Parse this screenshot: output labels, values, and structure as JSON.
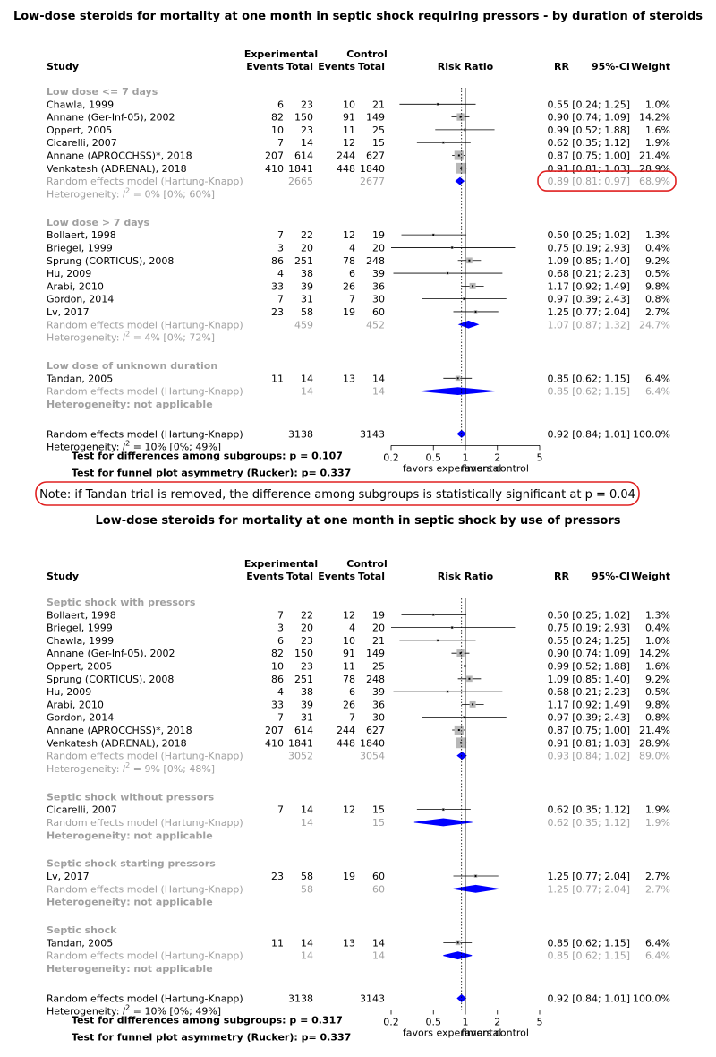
{
  "colors": {
    "diamond": "#0000ff",
    "box": "#b8b8b8",
    "grey_text": "#a0a0a0",
    "callout": "#e02020"
  },
  "headers": {
    "experimental": "Experimental",
    "control": "Control",
    "study": "Study",
    "events": "Events",
    "total": "Total",
    "risk_ratio": "Risk Ratio",
    "rr": "RR",
    "ci": "95%-CI",
    "weight": "Weight"
  },
  "chart_data": [
    {
      "type": "forest",
      "title": "Low-dose steroids for mortality at one month in septic shock requiring pressors - by duration of steroids",
      "xscale": "log",
      "xlim": [
        0.2,
        5
      ],
      "xticks": [
        "0.2",
        "0.5",
        "1",
        "2",
        "5"
      ],
      "xlabel_left": "favors experimental",
      "xlabel_right": "favors control",
      "reference_line": 1,
      "pooled_line": 0.92,
      "subgroups": [
        {
          "label": "Low dose <= 7 days",
          "studies": [
            {
              "name": "Chawla, 1999",
              "e_ev": "6",
              "e_tot": "23",
              "c_ev": "10",
              "c_tot": "21",
              "rr": 0.55,
              "lo": 0.24,
              "hi": 1.25,
              "rr_txt": "0.55",
              "ci_txt": "[0.24; 1.25]",
              "w": 1.0,
              "w_txt": "1.0%"
            },
            {
              "name": "Annane (Ger-Inf-05), 2002",
              "e_ev": "82",
              "e_tot": "150",
              "c_ev": "91",
              "c_tot": "149",
              "rr": 0.9,
              "lo": 0.74,
              "hi": 1.09,
              "rr_txt": "0.90",
              "ci_txt": "[0.74; 1.09]",
              "w": 14.2,
              "w_txt": "14.2%"
            },
            {
              "name": "Oppert, 2005",
              "e_ev": "10",
              "e_tot": "23",
              "c_ev": "11",
              "c_tot": "25",
              "rr": 0.99,
              "lo": 0.52,
              "hi": 1.88,
              "rr_txt": "0.99",
              "ci_txt": "[0.52; 1.88]",
              "w": 1.6,
              "w_txt": "1.6%"
            },
            {
              "name": "Cicarelli, 2007",
              "e_ev": "7",
              "e_tot": "14",
              "c_ev": "12",
              "c_tot": "15",
              "rr": 0.62,
              "lo": 0.35,
              "hi": 1.12,
              "rr_txt": "0.62",
              "ci_txt": "[0.35; 1.12]",
              "w": 1.9,
              "w_txt": "1.9%"
            },
            {
              "name": "Annane (APROCCHSS)*, 2018",
              "e_ev": "207",
              "e_tot": "614",
              "c_ev": "244",
              "c_tot": "627",
              "rr": 0.87,
              "lo": 0.75,
              "hi": 1.0,
              "rr_txt": "0.87",
              "ci_txt": "[0.75; 1.00]",
              "w": 21.4,
              "w_txt": "21.4%"
            },
            {
              "name": "Venkatesh  (ADRENAL), 2018",
              "e_ev": "410",
              "e_tot": "1841",
              "c_ev": "448",
              "c_tot": "1840",
              "rr": 0.91,
              "lo": 0.81,
              "hi": 1.03,
              "rr_txt": "0.91",
              "ci_txt": "[0.81; 1.03]",
              "w": 28.9,
              "w_txt": "28.9%"
            }
          ],
          "pooled": {
            "label": "Random effects model  (Hartung-Knapp)",
            "e_tot": "2665",
            "c_tot": "2677",
            "rr": 0.89,
            "lo": 0.81,
            "hi": 0.97,
            "rr_txt": "0.89",
            "ci_txt": "[0.81; 0.97]",
            "w_txt": "68.9%",
            "highlight": true
          },
          "het_prefix": "Heterogeneity: ",
          "het_sym": "I",
          "het_exp": "2",
          "het_rest": " = 0% [0%; 60%]"
        },
        {
          "label": "Low dose > 7 days",
          "studies": [
            {
              "name": "Bollaert, 1998",
              "e_ev": "7",
              "e_tot": "22",
              "c_ev": "12",
              "c_tot": "19",
              "rr": 0.5,
              "lo": 0.25,
              "hi": 1.02,
              "rr_txt": "0.50",
              "ci_txt": "[0.25; 1.02]",
              "w": 1.3,
              "w_txt": "1.3%"
            },
            {
              "name": "Briegel, 1999",
              "e_ev": "3",
              "e_tot": "20",
              "c_ev": "4",
              "c_tot": "20",
              "rr": 0.75,
              "lo": 0.19,
              "hi": 2.93,
              "rr_txt": "0.75",
              "ci_txt": "[0.19; 2.93]",
              "w": 0.4,
              "w_txt": "0.4%"
            },
            {
              "name": "Sprung (CORTICUS), 2008",
              "e_ev": "86",
              "e_tot": "251",
              "c_ev": "78",
              "c_tot": "248",
              "rr": 1.09,
              "lo": 0.85,
              "hi": 1.4,
              "rr_txt": "1.09",
              "ci_txt": "[0.85; 1.40]",
              "w": 9.2,
              "w_txt": "9.2%"
            },
            {
              "name": "Hu, 2009",
              "e_ev": "4",
              "e_tot": "38",
              "c_ev": "6",
              "c_tot": "39",
              "rr": 0.68,
              "lo": 0.21,
              "hi": 2.23,
              "rr_txt": "0.68",
              "ci_txt": "[0.21; 2.23]",
              "w": 0.5,
              "w_txt": "0.5%"
            },
            {
              "name": "Arabi, 2010",
              "e_ev": "33",
              "e_tot": "39",
              "c_ev": "26",
              "c_tot": "36",
              "rr": 1.17,
              "lo": 0.92,
              "hi": 1.49,
              "rr_txt": "1.17",
              "ci_txt": "[0.92; 1.49]",
              "w": 9.8,
              "w_txt": "9.8%"
            },
            {
              "name": "Gordon, 2014",
              "e_ev": "7",
              "e_tot": "31",
              "c_ev": "7",
              "c_tot": "30",
              "rr": 0.97,
              "lo": 0.39,
              "hi": 2.43,
              "rr_txt": "0.97",
              "ci_txt": "[0.39; 2.43]",
              "w": 0.8,
              "w_txt": "0.8%"
            },
            {
              "name": "Lv, 2017",
              "e_ev": "23",
              "e_tot": "58",
              "c_ev": "19",
              "c_tot": "60",
              "rr": 1.25,
              "lo": 0.77,
              "hi": 2.04,
              "rr_txt": "1.25",
              "ci_txt": "[0.77; 2.04]",
              "w": 2.7,
              "w_txt": "2.7%"
            }
          ],
          "pooled": {
            "label": "Random effects model  (Hartung-Knapp)",
            "e_tot": "459",
            "c_tot": "452",
            "rr": 1.07,
            "lo": 0.87,
            "hi": 1.32,
            "rr_txt": "1.07",
            "ci_txt": "[0.87; 1.32]",
            "w_txt": "24.7%"
          },
          "het_prefix": "Heterogeneity: ",
          "het_sym": "I",
          "het_exp": "2",
          "het_rest": " = 4% [0%; 72%]"
        },
        {
          "label": "Low dose of unknown duration",
          "studies": [
            {
              "name": "Tandan, 2005",
              "e_ev": "11",
              "e_tot": "14",
              "c_ev": "13",
              "c_tot": "14",
              "rr": 0.85,
              "lo": 0.62,
              "hi": 1.15,
              "rr_txt": "0.85",
              "ci_txt": "[0.62; 1.15]",
              "w": 6.4,
              "w_txt": "6.4%"
            }
          ],
          "pooled": {
            "label": "Random effects model  (Hartung-Knapp)",
            "e_tot": "14",
            "c_tot": "14",
            "rr": 0.85,
            "lo": 0.62,
            "hi": 1.15,
            "rr_txt": "0.85",
            "ci_txt": "[0.62; 1.15]",
            "w_txt": "6.4%",
            "wide_lo": 0.38,
            "wide_hi": 1.9
          },
          "het_na": "Heterogeneity: not applicable"
        }
      ],
      "overall": {
        "label": "Random effects model  (Hartung-Knapp)",
        "e_tot": "3138",
        "c_tot": "3143",
        "rr": 0.92,
        "lo": 0.84,
        "hi": 1.01,
        "rr_txt": "0.92",
        "ci_txt": "[0.84; 1.01]",
        "w_txt": "100.0%",
        "het_prefix": "Heterogeneity: ",
        "het_sym": "I",
        "het_exp": "2",
        "het_rest": " = 10% [0%; 49%]"
      },
      "tests": [
        "Test for differences among subgroups: p = 0.107",
        "Test for funnel plot asymmetry (Rucker): p= 0.337"
      ]
    },
    {
      "type": "forest",
      "title": "Low-dose steroids for mortality at one month in septic shock by use of pressors",
      "xscale": "log",
      "xlim": [
        0.2,
        5
      ],
      "xticks": [
        "0.2",
        "0.5",
        "1",
        "2",
        "5"
      ],
      "xlabel_left": "favors experimental",
      "xlabel_right": "favors control",
      "reference_line": 1,
      "pooled_line": 0.92,
      "subgroups": [
        {
          "label": "Septic shock with pressors",
          "studies": [
            {
              "name": "Bollaert, 1998",
              "e_ev": "7",
              "e_tot": "22",
              "c_ev": "12",
              "c_tot": "19",
              "rr": 0.5,
              "lo": 0.25,
              "hi": 1.02,
              "rr_txt": "0.50",
              "ci_txt": "[0.25; 1.02]",
              "w": 1.3,
              "w_txt": "1.3%"
            },
            {
              "name": "Briegel, 1999",
              "e_ev": "3",
              "e_tot": "20",
              "c_ev": "4",
              "c_tot": "20",
              "rr": 0.75,
              "lo": 0.19,
              "hi": 2.93,
              "rr_txt": "0.75",
              "ci_txt": "[0.19; 2.93]",
              "w": 0.4,
              "w_txt": "0.4%"
            },
            {
              "name": "Chawla, 1999",
              "e_ev": "6",
              "e_tot": "23",
              "c_ev": "10",
              "c_tot": "21",
              "rr": 0.55,
              "lo": 0.24,
              "hi": 1.25,
              "rr_txt": "0.55",
              "ci_txt": "[0.24; 1.25]",
              "w": 1.0,
              "w_txt": "1.0%"
            },
            {
              "name": "Annane (Ger-Inf-05), 2002",
              "e_ev": "82",
              "e_tot": "150",
              "c_ev": "91",
              "c_tot": "149",
              "rr": 0.9,
              "lo": 0.74,
              "hi": 1.09,
              "rr_txt": "0.90",
              "ci_txt": "[0.74; 1.09]",
              "w": 14.2,
              "w_txt": "14.2%"
            },
            {
              "name": "Oppert, 2005",
              "e_ev": "10",
              "e_tot": "23",
              "c_ev": "11",
              "c_tot": "25",
              "rr": 0.99,
              "lo": 0.52,
              "hi": 1.88,
              "rr_txt": "0.99",
              "ci_txt": "[0.52; 1.88]",
              "w": 1.6,
              "w_txt": "1.6%"
            },
            {
              "name": "Sprung (CORTICUS), 2008",
              "e_ev": "86",
              "e_tot": "251",
              "c_ev": "78",
              "c_tot": "248",
              "rr": 1.09,
              "lo": 0.85,
              "hi": 1.4,
              "rr_txt": "1.09",
              "ci_txt": "[0.85; 1.40]",
              "w": 9.2,
              "w_txt": "9.2%"
            },
            {
              "name": "Hu, 2009",
              "e_ev": "4",
              "e_tot": "38",
              "c_ev": "6",
              "c_tot": "39",
              "rr": 0.68,
              "lo": 0.21,
              "hi": 2.23,
              "rr_txt": "0.68",
              "ci_txt": "[0.21; 2.23]",
              "w": 0.5,
              "w_txt": "0.5%"
            },
            {
              "name": "Arabi, 2010",
              "e_ev": "33",
              "e_tot": "39",
              "c_ev": "26",
              "c_tot": "36",
              "rr": 1.17,
              "lo": 0.92,
              "hi": 1.49,
              "rr_txt": "1.17",
              "ci_txt": "[0.92; 1.49]",
              "w": 9.8,
              "w_txt": "9.8%"
            },
            {
              "name": "Gordon, 2014",
              "e_ev": "7",
              "e_tot": "31",
              "c_ev": "7",
              "c_tot": "30",
              "rr": 0.97,
              "lo": 0.39,
              "hi": 2.43,
              "rr_txt": "0.97",
              "ci_txt": "[0.39; 2.43]",
              "w": 0.8,
              "w_txt": "0.8%"
            },
            {
              "name": "Annane (APROCCHSS)*, 2018",
              "e_ev": "207",
              "e_tot": "614",
              "c_ev": "244",
              "c_tot": "627",
              "rr": 0.87,
              "lo": 0.75,
              "hi": 1.0,
              "rr_txt": "0.87",
              "ci_txt": "[0.75; 1.00]",
              "w": 21.4,
              "w_txt": "21.4%"
            },
            {
              "name": "Venkatesh  (ADRENAL), 2018",
              "e_ev": "410",
              "e_tot": "1841",
              "c_ev": "448",
              "c_tot": "1840",
              "rr": 0.91,
              "lo": 0.81,
              "hi": 1.03,
              "rr_txt": "0.91",
              "ci_txt": "[0.81; 1.03]",
              "w": 28.9,
              "w_txt": "28.9%"
            }
          ],
          "pooled": {
            "label": "Random effects model  (Hartung-Knapp)",
            "e_tot": "3052",
            "c_tot": "3054",
            "rr": 0.93,
            "lo": 0.84,
            "hi": 1.02,
            "rr_txt": "0.93",
            "ci_txt": "[0.84; 1.02]",
            "w_txt": "89.0%"
          },
          "het_prefix": "Heterogeneity: ",
          "het_sym": "I",
          "het_exp": "2",
          "het_rest": " = 9% [0%; 48%]"
        },
        {
          "label": "Septic shock without pressors",
          "studies": [
            {
              "name": "Cicarelli, 2007",
              "e_ev": "7",
              "e_tot": "14",
              "c_ev": "12",
              "c_tot": "15",
              "rr": 0.62,
              "lo": 0.35,
              "hi": 1.12,
              "rr_txt": "0.62",
              "ci_txt": "[0.35; 1.12]",
              "w": 1.9,
              "w_txt": "1.9%"
            }
          ],
          "pooled": {
            "label": "Random effects model  (Hartung-Knapp)",
            "e_tot": "14",
            "c_tot": "15",
            "rr": 0.62,
            "lo": 0.35,
            "hi": 1.12,
            "rr_txt": "0.62",
            "ci_txt": "[0.35; 1.12]",
            "w_txt": "1.9%",
            "wide_lo": 0.33,
            "wide_hi": 1.16
          },
          "het_na": "Heterogeneity: not applicable"
        },
        {
          "label": "Septic shock starting pressors",
          "studies": [
            {
              "name": "Lv, 2017",
              "e_ev": "23",
              "e_tot": "58",
              "c_ev": "19",
              "c_tot": "60",
              "rr": 1.25,
              "lo": 0.77,
              "hi": 2.04,
              "rr_txt": "1.25",
              "ci_txt": "[0.77; 2.04]",
              "w": 2.7,
              "w_txt": "2.7%"
            }
          ],
          "pooled": {
            "label": "Random effects model  (Hartung-Knapp)",
            "e_tot": "58",
            "c_tot": "60",
            "rr": 1.25,
            "lo": 0.77,
            "hi": 2.04,
            "rr_txt": "1.25",
            "ci_txt": "[0.77; 2.04]",
            "w_txt": "2.7%",
            "wide_lo": 0.77,
            "wide_hi": 2.04
          },
          "het_na": "Heterogeneity: not applicable"
        },
        {
          "label": "Septic shock",
          "studies": [
            {
              "name": "Tandan, 2005",
              "e_ev": "11",
              "e_tot": "14",
              "c_ev": "13",
              "c_tot": "14",
              "rr": 0.85,
              "lo": 0.62,
              "hi": 1.15,
              "rr_txt": "0.85",
              "ci_txt": "[0.62; 1.15]",
              "w": 6.4,
              "w_txt": "6.4%"
            }
          ],
          "pooled": {
            "label": "Random effects model  (Hartung-Knapp)",
            "e_tot": "14",
            "c_tot": "14",
            "rr": 0.85,
            "lo": 0.62,
            "hi": 1.15,
            "rr_txt": "0.85",
            "ci_txt": "[0.62; 1.15]",
            "w_txt": "6.4%",
            "wide_lo": 0.62,
            "wide_hi": 1.15
          },
          "het_na": "Heterogeneity: not applicable"
        }
      ],
      "overall": {
        "label": "Random effects model  (Hartung-Knapp)",
        "e_tot": "3138",
        "c_tot": "3143",
        "rr": 0.92,
        "lo": 0.84,
        "hi": 1.01,
        "rr_txt": "0.92",
        "ci_txt": "[0.84; 1.01]",
        "w_txt": "100.0%",
        "het_prefix": "Heterogeneity: ",
        "het_sym": "I",
        "het_exp": "2",
        "het_rest": " = 10% [0%; 49%]"
      },
      "tests": [
        "Test for differences among subgroups: p = 0.317",
        "Test for funnel plot asymmetry (Rucker): p= 0.337"
      ]
    }
  ],
  "note": "Note: if Tandan trial is removed, the difference among subgroups is statistically significant at  p = 0.04"
}
